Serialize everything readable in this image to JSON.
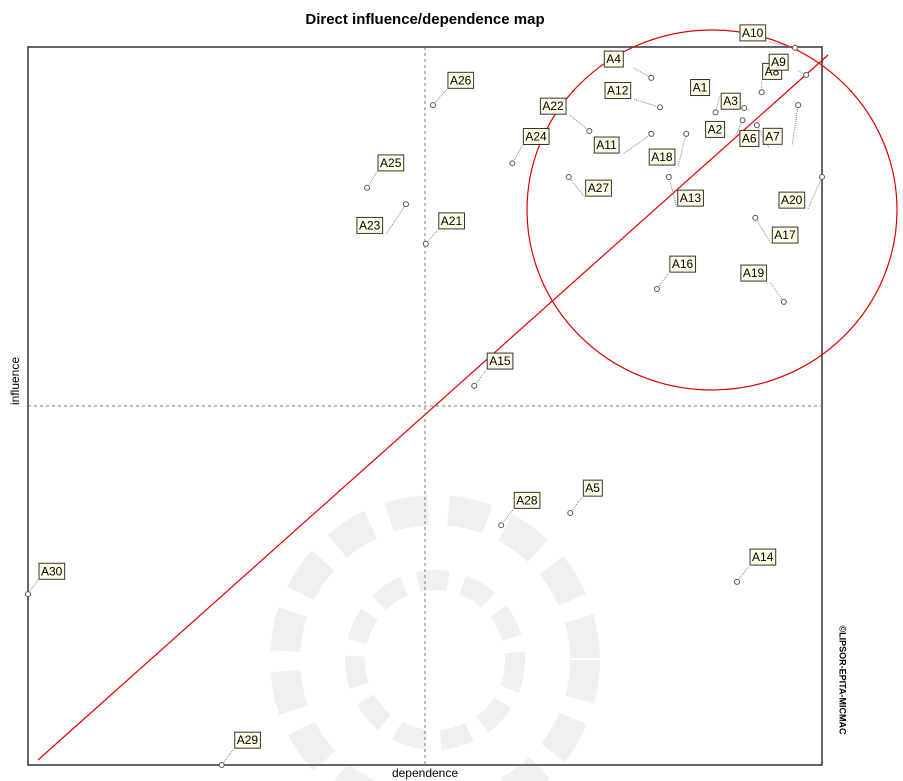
{
  "chart_data": {
    "type": "scatter",
    "title": "Direct influence/dependence map",
    "x_label": "dependence",
    "y_label": "influence",
    "credit": "©LIPSOR-EPITA-MICMAC",
    "xlim": [
      0,
      100
    ],
    "ylim": [
      0,
      100
    ],
    "labels": [
      "A26",
      "A25",
      "A23",
      "A21",
      "A15",
      "A28",
      "A5",
      "A14",
      "A30",
      "A29",
      "A4",
      "A12",
      "A22",
      "A24",
      "A11",
      "A27",
      "A18",
      "A13",
      "A1",
      "A8",
      "A3",
      "A2",
      "A6",
      "A9",
      "A10",
      "A7",
      "A20",
      "A17",
      "A16",
      "A19"
    ],
    "x": [
      51.0,
      42.7,
      47.6,
      50.1,
      56.2,
      59.6,
      68.3,
      89.3,
      0,
      24.4,
      78.5,
      79.6,
      70.7,
      61.0,
      78.5,
      68.1,
      82.9,
      80.7,
      86.6,
      92.4,
      90.2,
      90.0,
      91.8,
      98.0,
      96.6,
      97.0,
      100,
      91.6,
      79.2,
      95.2
    ],
    "y": [
      91.9,
      80.4,
      78.1,
      72.6,
      52.8,
      33.4,
      35.1,
      25.5,
      23.8,
      0,
      95.7,
      91.6,
      88.3,
      83.8,
      87.9,
      81.9,
      87.9,
      81.9,
      90.9,
      93.7,
      91.5,
      89.8,
      89.1,
      96.1,
      99.9,
      91.9,
      81.9,
      76.2,
      66.3,
      64.5
    ]
  }
}
